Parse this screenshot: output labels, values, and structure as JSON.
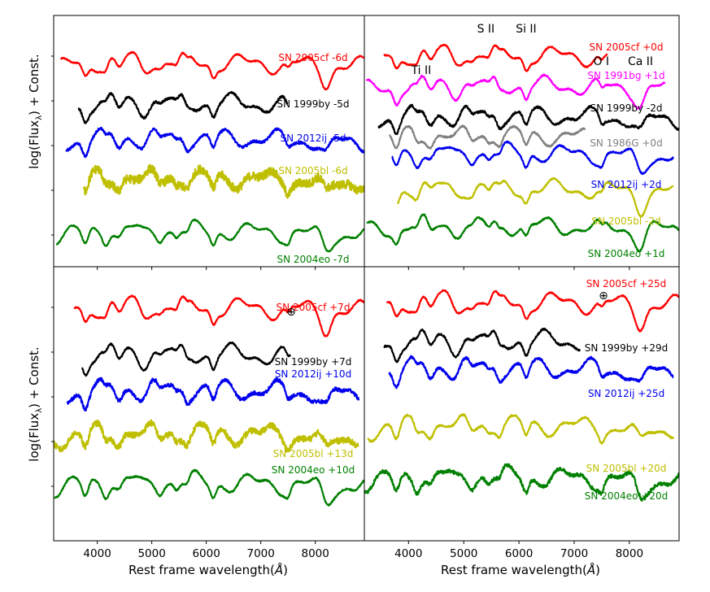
{
  "figure": {
    "ylabel_top": "log(Flux",
    "ylabel_sub": "λ",
    "ylabel_tail": ") + Const.",
    "xlabel": "Rest frame wavelength(",
    "xlabel_unit": "Å",
    "xlabel_tail": ")",
    "telluric_symbol": "⊕"
  },
  "chart_data": [
    {
      "type": "line",
      "panel": "top-left",
      "xlim": [
        3200,
        8900
      ],
      "xticks": [
        4000,
        5000,
        6000,
        7000,
        8000
      ],
      "show_xtick_labels": false,
      "series": [
        {
          "name": "SN 2005cf -6d",
          "color": "#ff0000",
          "offset": 8.2,
          "range": [
            3330,
            8900
          ],
          "noise": 0.04
        },
        {
          "name": "SN 1999by -5d",
          "color": "#000000",
          "offset": 6.6,
          "range": [
            3650,
            7500
          ],
          "noise": 0.08
        },
        {
          "name": "SN 2012ij -5d",
          "color": "#0000ee",
          "offset": 5.2,
          "range": [
            3420,
            8900
          ],
          "noise": 0.09
        },
        {
          "name": "SN 2005bl -6d",
          "color": "#bfbf00",
          "offset": 3.6,
          "range": [
            3750,
            8900
          ],
          "noise": 0.32
        },
        {
          "name": "SN 2004eo -7d",
          "color": "#008000",
          "offset": 1.5,
          "range": [
            3250,
            8900
          ],
          "noise": 0.04
        }
      ],
      "annotations": []
    },
    {
      "type": "line",
      "panel": "top-right",
      "xlim": [
        3200,
        8900
      ],
      "xticks": [
        4000,
        5000,
        6000,
        7000,
        8000
      ],
      "show_xtick_labels": false,
      "series": [
        {
          "name": "SN 2005cf +0d",
          "color": "#ff0000",
          "offset": 8.5,
          "range": [
            3550,
            7600
          ],
          "noise": 0.04
        },
        {
          "name": "SN 1991bg +1d",
          "color": "#ff00ff",
          "offset": 7.3,
          "range": [
            3240,
            8650
          ],
          "noise": 0.05
        },
        {
          "name": "SN 1999by -2d",
          "color": "#000000",
          "offset": 6.1,
          "range": [
            3450,
            8900
          ],
          "noise": 0.08
        },
        {
          "name": "SN 1986G +0d",
          "color": "#808080",
          "offset": 5.3,
          "range": [
            3650,
            7200
          ],
          "noise": 0.06
        },
        {
          "name": "SN 2012ij +2d",
          "color": "#0000ee",
          "offset": 4.6,
          "range": [
            3700,
            8800
          ],
          "noise": 0.05
        },
        {
          "name": "SN 2005bl -2d",
          "color": "#bfbf00",
          "offset": 3.2,
          "range": [
            3800,
            8800
          ],
          "noise": 0.05
        },
        {
          "name": "SN 2004eo +1d",
          "color": "#008000",
          "offset": 1.7,
          "range": [
            3250,
            8900
          ],
          "noise": 0.05
        }
      ],
      "annotations": [
        {
          "text": "S II",
          "wavelength": 5400
        },
        {
          "text": "Si II",
          "wavelength": 6130
        },
        {
          "text": "Ti II",
          "wavelength": 4230
        },
        {
          "text": "O I",
          "wavelength": 7490
        },
        {
          "text": "Ca II",
          "wavelength": 8200
        }
      ]
    },
    {
      "type": "line",
      "panel": "bottom-left",
      "xlim": [
        3200,
        8900
      ],
      "xticks": [
        4000,
        5000,
        6000,
        7000,
        8000
      ],
      "show_xtick_labels": true,
      "series": [
        {
          "name": "SN 2005cf +7d",
          "color": "#ff0000",
          "offset": 8.6,
          "range": [
            3580,
            8900
          ],
          "noise": 0.04
        },
        {
          "name": "SN 1999by +7d",
          "color": "#000000",
          "offset": 6.9,
          "range": [
            3720,
            7550
          ],
          "noise": 0.05
        },
        {
          "name": "SN 2012ij +10d",
          "color": "#0000ee",
          "offset": 5.6,
          "range": [
            3450,
            8800
          ],
          "noise": 0.12
        },
        {
          "name": "SN 2005bl +13d",
          "color": "#bfbf00",
          "offset": 4.0,
          "range": [
            3200,
            8800
          ],
          "noise": 0.2
        },
        {
          "name": "SN 2004eo +10d",
          "color": "#008000",
          "offset": 2.2,
          "range": [
            3220,
            8900
          ],
          "noise": 0.05
        }
      ],
      "annotations": []
    },
    {
      "type": "line",
      "panel": "bottom-right",
      "xlim": [
        3200,
        8900
      ],
      "xticks": [
        4000,
        5000,
        6000,
        7000,
        8000
      ],
      "show_xtick_labels": true,
      "series": [
        {
          "name": "SN 2005cf +25d",
          "color": "#ff0000",
          "offset": 8.8,
          "range": [
            3600,
            8900
          ],
          "noise": 0.04
        },
        {
          "name": "SN 1999by +29d",
          "color": "#000000",
          "offset": 7.4,
          "range": [
            3560,
            7100
          ],
          "noise": 0.06
        },
        {
          "name": "SN 2012ij +25d",
          "color": "#0000ee",
          "offset": 6.4,
          "range": [
            3650,
            8800
          ],
          "noise": 0.08
        },
        {
          "name": "SN 2005bl +20d",
          "color": "#bfbf00",
          "offset": 4.3,
          "range": [
            3260,
            8800
          ],
          "noise": 0.06
        },
        {
          "name": "SN 2004eo +20d",
          "color": "#008000",
          "offset": 2.4,
          "range": [
            3200,
            8900
          ],
          "noise": 0.12
        }
      ],
      "annotations": []
    }
  ]
}
